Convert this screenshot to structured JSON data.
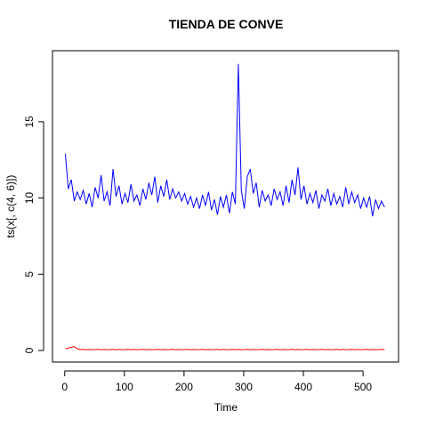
{
  "chart_data": {
    "type": "line",
    "title": "TIENDA DE CONVE",
    "x_label": "Time",
    "y_label": "ts(x[, c(4, 6)])",
    "x": [
      1,
      6,
      11,
      16,
      21,
      26,
      31,
      36,
      41,
      46,
      51,
      56,
      61,
      66,
      71,
      76,
      81,
      86,
      91,
      96,
      101,
      106,
      111,
      116,
      121,
      126,
      131,
      136,
      141,
      146,
      151,
      156,
      161,
      166,
      171,
      176,
      181,
      186,
      191,
      196,
      201,
      206,
      211,
      216,
      221,
      226,
      231,
      236,
      241,
      246,
      251,
      256,
      261,
      266,
      271,
      276,
      281,
      286,
      291,
      296,
      301,
      306,
      311,
      316,
      321,
      326,
      331,
      336,
      341,
      346,
      351,
      356,
      361,
      366,
      371,
      376,
      381,
      386,
      391,
      396,
      401,
      406,
      411,
      416,
      421,
      426,
      431,
      436,
      441,
      446,
      451,
      456,
      461,
      466,
      471,
      476,
      481,
      486,
      491,
      496,
      501,
      506,
      511,
      516,
      521,
      526,
      531,
      536
    ],
    "series": [
      {
        "color": "#0000ff",
        "values": [
          12.9,
          10.6,
          11.2,
          9.8,
          10.4,
          9.9,
          10.5,
          9.6,
          10.3,
          9.4,
          10.7,
          10.0,
          11.5,
          9.8,
          10.4,
          9.5,
          11.9,
          10.1,
          10.8,
          9.6,
          10.3,
          9.7,
          10.9,
          9.8,
          10.2,
          9.5,
          10.6,
          9.9,
          11.0,
          10.2,
          11.4,
          9.7,
          10.8,
          10.1,
          11.2,
          9.9,
          10.6,
          10.0,
          10.4,
          9.8,
          10.3,
          9.6,
          10.1,
          9.4,
          10.0,
          9.3,
          10.2,
          9.5,
          10.4,
          9.2,
          9.9,
          8.9,
          10.1,
          9.4,
          10.2,
          9.0,
          10.4,
          9.6,
          18.8,
          10.5,
          9.3,
          11.4,
          11.9,
          10.3,
          11.0,
          9.4,
          10.5,
          9.8,
          10.2,
          9.5,
          10.6,
          9.9,
          10.4,
          9.5,
          10.8,
          9.7,
          11.2,
          10.2,
          12.0,
          9.9,
          10.8,
          9.6,
          10.3,
          9.7,
          10.5,
          9.3,
          10.2,
          9.8,
          10.6,
          9.5,
          10.3,
          9.6,
          10.1,
          9.4,
          10.7,
          9.6,
          10.4,
          9.7,
          10.2,
          9.3,
          10.0,
          9.4,
          10.1,
          8.8,
          9.9,
          9.3,
          9.8,
          9.4
        ]
      },
      {
        "color": "#ff0000",
        "values": [
          0.12,
          0.15,
          0.22,
          0.25,
          0.12,
          0.06,
          0.08,
          0.04,
          0.07,
          0.05,
          0.06,
          0.08,
          0.04,
          0.07,
          0.05,
          0.06,
          0.08,
          0.04,
          0.07,
          0.05,
          0.06,
          0.08,
          0.04,
          0.07,
          0.05,
          0.06,
          0.08,
          0.04,
          0.07,
          0.05,
          0.06,
          0.08,
          0.04,
          0.07,
          0.05,
          0.06,
          0.08,
          0.04,
          0.07,
          0.05,
          0.06,
          0.08,
          0.04,
          0.07,
          0.05,
          0.06,
          0.08,
          0.04,
          0.07,
          0.05,
          0.06,
          0.08,
          0.04,
          0.07,
          0.05,
          0.06,
          0.08,
          0.04,
          0.07,
          0.05,
          0.06,
          0.08,
          0.04,
          0.07,
          0.05,
          0.06,
          0.08,
          0.04,
          0.07,
          0.05,
          0.06,
          0.08,
          0.04,
          0.07,
          0.05,
          0.06,
          0.08,
          0.04,
          0.07,
          0.05,
          0.06,
          0.08,
          0.04,
          0.07,
          0.05,
          0.06,
          0.08,
          0.04,
          0.07,
          0.05,
          0.06,
          0.08,
          0.04,
          0.07,
          0.05,
          0.06,
          0.08,
          0.04,
          0.07,
          0.05,
          0.06,
          0.08,
          0.04,
          0.07,
          0.05,
          0.06,
          0.08,
          0.04
        ]
      }
    ],
    "xlim": [
      -20.5,
      559.5
    ],
    "xticks": [
      0,
      100,
      200,
      300,
      400,
      500
    ],
    "ylim": [
      -0.76,
      19.66
    ],
    "yticks": [
      0,
      5,
      10,
      15
    ]
  }
}
